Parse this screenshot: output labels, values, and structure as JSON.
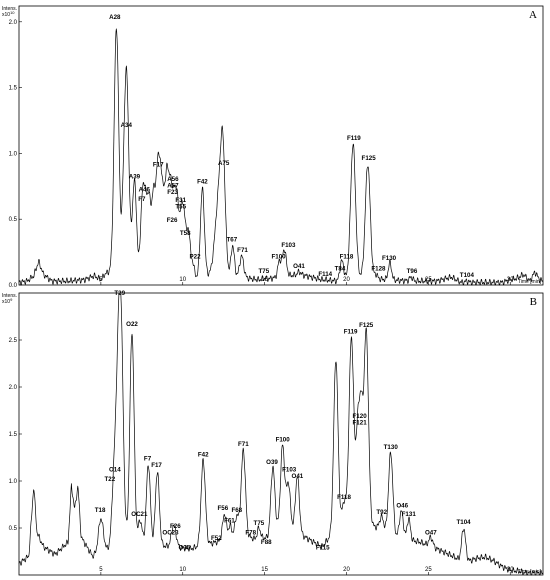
{
  "chart_data": [
    {
      "type": "line",
      "panel_label": "A",
      "y_unit_label": "Intens.",
      "y_scale_label": "x10",
      "y_scale_exp": "10",
      "x_unit_label": "Time [min]",
      "xlim": [
        0,
        32
      ],
      "ylim": [
        0,
        2.12
      ],
      "x_ticks": [
        {
          "value": 5,
          "label": "5"
        },
        {
          "value": 10,
          "label": "10"
        },
        {
          "value": 15,
          "label": "15"
        },
        {
          "value": 20,
          "label": "20"
        },
        {
          "value": 25,
          "label": "25"
        },
        {
          "value": 30,
          "label": "30"
        }
      ],
      "y_ticks": [
        {
          "value": 0.0,
          "label": "0.0"
        },
        {
          "value": 0.5,
          "label": "0.5"
        },
        {
          "value": 1.0,
          "label": "1.0"
        },
        {
          "value": 1.5,
          "label": "1.5"
        },
        {
          "value": 2.0,
          "label": "2.0"
        }
      ],
      "baseline": [
        [
          0.0,
          0.02
        ],
        [
          0.5,
          0.03
        ],
        [
          0.9,
          0.07
        ],
        [
          1.2,
          0.18
        ],
        [
          1.5,
          0.08
        ],
        [
          2.0,
          0.03
        ],
        [
          3.0,
          0.03
        ],
        [
          4.0,
          0.04
        ],
        [
          4.6,
          0.07
        ],
        [
          5.0,
          0.04
        ],
        [
          5.3,
          0.09
        ],
        [
          5.6,
          0.1
        ],
        [
          7.6,
          0.06
        ],
        [
          10.6,
          0.05
        ],
        [
          11.8,
          0.08
        ],
        [
          12.6,
          0.09
        ],
        [
          13.6,
          0.06
        ],
        [
          14.6,
          0.04
        ],
        [
          15.4,
          0.05
        ],
        [
          16.4,
          0.07
        ],
        [
          17.2,
          0.08
        ],
        [
          18.5,
          0.04
        ],
        [
          19.5,
          0.03
        ],
        [
          20.6,
          0.07
        ],
        [
          21.4,
          0.05
        ],
        [
          22.6,
          0.04
        ],
        [
          24.0,
          0.03
        ],
        [
          25.5,
          0.03
        ],
        [
          26.4,
          0.06
        ],
        [
          27.0,
          0.02
        ],
        [
          29.5,
          0.02
        ],
        [
          30.0,
          0.04
        ],
        [
          30.4,
          0.05
        ],
        [
          30.8,
          0.08
        ],
        [
          31.2,
          0.03
        ],
        [
          31.5,
          0.1
        ],
        [
          31.8,
          0.04
        ],
        [
          32.0,
          0.03
        ]
      ],
      "peaks": [
        {
          "x": 5.95,
          "y": 1.96,
          "w": 0.14,
          "label": "A28",
          "lx": 5.85,
          "ly": 2.02,
          "ha": "middle"
        },
        {
          "x": 6.45,
          "y": 0.79,
          "w": 0.14,
          "label": "",
          "lx": null,
          "ly": null,
          "ha": "middle"
        },
        {
          "x": 6.6,
          "y": 1.17,
          "w": 0.13,
          "label": "A34",
          "lx": 6.55,
          "ly": 1.2,
          "ha": "middle"
        },
        {
          "x": 7.05,
          "y": 0.79,
          "w": 0.13,
          "label": "A39",
          "lx": 7.05,
          "ly": 0.81,
          "ha": "middle"
        },
        {
          "x": 7.5,
          "y": 0.5,
          "w": 0.1,
          "label": "",
          "lx": null,
          "ly": null,
          "ha": "middle"
        },
        {
          "x": 7.7,
          "y": 0.68,
          "w": 0.12,
          "label": "A46",
          "lx": 7.65,
          "ly": 0.71,
          "ha": "middle"
        },
        {
          "x": 7.95,
          "y": 0.62,
          "w": 0.1,
          "label": "F7",
          "lx": 7.5,
          "ly": 0.64,
          "ha": "middle"
        },
        {
          "x": 8.2,
          "y": 0.67,
          "w": 0.1,
          "label": "",
          "lx": null,
          "ly": null,
          "ha": "middle"
        },
        {
          "x": 8.45,
          "y": 0.84,
          "w": 0.11,
          "label": "F17",
          "lx": 8.5,
          "ly": 0.9,
          "ha": "middle"
        },
        {
          "x": 8.65,
          "y": 0.72,
          "w": 0.1,
          "label": "",
          "lx": null,
          "ly": null,
          "ha": "middle"
        },
        {
          "x": 8.85,
          "y": 0.58,
          "w": 0.1,
          "label": "",
          "lx": null,
          "ly": null,
          "ha": "middle"
        },
        {
          "x": 9.05,
          "y": 0.76,
          "w": 0.1,
          "label": "A56",
          "lx": 9.05,
          "ly": 0.79,
          "ha": "start"
        },
        {
          "x": 9.25,
          "y": 0.66,
          "w": 0.1,
          "label": "A57",
          "lx": 9.05,
          "ly": 0.74,
          "ha": "start"
        },
        {
          "x": 9.45,
          "y": 0.59,
          "w": 0.1,
          "label": "F23",
          "lx": 9.05,
          "ly": 0.69,
          "ha": "start"
        },
        {
          "x": 9.65,
          "y": 0.64,
          "w": 0.1,
          "label": "F26",
          "lx": 9.35,
          "ly": 0.48,
          "ha": "middle"
        },
        {
          "x": 9.9,
          "y": 0.54,
          "w": 0.1,
          "label": "F31",
          "lx": 9.55,
          "ly": 0.63,
          "ha": "start"
        },
        {
          "x": 10.1,
          "y": 0.49,
          "w": 0.1,
          "label": "T55",
          "lx": 9.55,
          "ly": 0.58,
          "ha": "start"
        },
        {
          "x": 10.35,
          "y": 0.41,
          "w": 0.1,
          "label": "T58",
          "lx": 10.15,
          "ly": 0.38,
          "ha": "middle"
        },
        {
          "x": 10.6,
          "y": 0.17,
          "w": 0.1,
          "label": "P22",
          "lx": 10.75,
          "ly": 0.2,
          "ha": "middle"
        },
        {
          "x": 11.2,
          "y": 0.73,
          "w": 0.12,
          "label": "F42",
          "lx": 11.2,
          "ly": 0.77,
          "ha": "middle"
        },
        {
          "x": 12.2,
          "y": 0.65,
          "w": 0.22,
          "label": "",
          "lx": null,
          "ly": null,
          "ha": "middle"
        },
        {
          "x": 12.45,
          "y": 0.86,
          "w": 0.14,
          "label": "A75",
          "lx": 12.5,
          "ly": 0.91,
          "ha": "middle"
        },
        {
          "x": 13.05,
          "y": 0.3,
          "w": 0.1,
          "label": "T67",
          "lx": 13.0,
          "ly": 0.33,
          "ha": "middle"
        },
        {
          "x": 13.6,
          "y": 0.22,
          "w": 0.12,
          "label": "F71",
          "lx": 13.65,
          "ly": 0.25,
          "ha": "middle"
        },
        {
          "x": 14.95,
          "y": 0.05,
          "w": 0.1,
          "label": "T75",
          "lx": 14.95,
          "ly": 0.09,
          "ha": "middle"
        },
        {
          "x": 15.9,
          "y": 0.18,
          "w": 0.1,
          "label": "F100",
          "lx": 15.85,
          "ly": 0.2,
          "ha": "middle"
        },
        {
          "x": 16.2,
          "y": 0.27,
          "w": 0.12,
          "label": "F103",
          "lx": 16.45,
          "ly": 0.29,
          "ha": "middle"
        },
        {
          "x": 17.1,
          "y": 0.1,
          "w": 0.1,
          "label": "O41",
          "lx": 17.1,
          "ly": 0.13,
          "ha": "middle"
        },
        {
          "x": 18.7,
          "y": 0.04,
          "w": 0.1,
          "label": "F114",
          "lx": 18.7,
          "ly": 0.07,
          "ha": "middle"
        },
        {
          "x": 19.65,
          "y": 0.1,
          "w": 0.1,
          "label": "T84",
          "lx": 19.6,
          "ly": 0.11,
          "ha": "middle"
        },
        {
          "x": 19.75,
          "y": 0.14,
          "w": 0.1,
          "label": "F118",
          "lx": 20.0,
          "ly": 0.2,
          "ha": "middle"
        },
        {
          "x": 20.4,
          "y": 1.07,
          "w": 0.15,
          "label": "F119",
          "lx": 20.45,
          "ly": 1.1,
          "ha": "middle"
        },
        {
          "x": 21.3,
          "y": 0.92,
          "w": 0.15,
          "label": "F125",
          "lx": 21.35,
          "ly": 0.95,
          "ha": "middle"
        },
        {
          "x": 21.8,
          "y": 0.08,
          "w": 0.1,
          "label": "F128",
          "lx": 21.95,
          "ly": 0.11,
          "ha": "middle"
        },
        {
          "x": 22.65,
          "y": 0.17,
          "w": 0.1,
          "label": "F130",
          "lx": 22.6,
          "ly": 0.19,
          "ha": "middle"
        },
        {
          "x": 23.95,
          "y": 0.06,
          "w": 0.1,
          "label": "T96",
          "lx": 24.0,
          "ly": 0.09,
          "ha": "middle"
        },
        {
          "x": 27.35,
          "y": 0.03,
          "w": 0.1,
          "label": "T104",
          "lx": 27.35,
          "ly": 0.06,
          "ha": "middle"
        }
      ]
    },
    {
      "type": "line",
      "panel_label": "B",
      "y_unit_label": "Intens.",
      "y_scale_label": "x10",
      "y_scale_exp": "9",
      "x_unit_label": "Time [min]",
      "xlim": [
        0,
        32
      ],
      "ylim": [
        0,
        3.0
      ],
      "x_ticks": [
        {
          "value": 5,
          "label": "5"
        },
        {
          "value": 10,
          "label": "10"
        },
        {
          "value": 15,
          "label": "15"
        },
        {
          "value": 20,
          "label": "20"
        },
        {
          "value": 25,
          "label": "25"
        },
        {
          "value": 30,
          "label": "30"
        }
      ],
      "y_ticks": [
        {
          "value": 0.5,
          "label": "0.5"
        },
        {
          "value": 1.0,
          "label": "1.0"
        },
        {
          "value": 1.5,
          "label": "1.5"
        },
        {
          "value": 2.0,
          "label": "2.0"
        },
        {
          "value": 2.5,
          "label": "2.5"
        }
      ],
      "baseline": [
        [
          0.0,
          0.12
        ],
        [
          0.6,
          0.2
        ],
        [
          0.9,
          0.95
        ],
        [
          1.1,
          0.45
        ],
        [
          1.5,
          0.3
        ],
        [
          2.2,
          0.22
        ],
        [
          3.0,
          0.35
        ],
        [
          3.2,
          0.95
        ],
        [
          3.4,
          0.7
        ],
        [
          3.6,
          0.95
        ],
        [
          3.8,
          0.4
        ],
        [
          4.5,
          0.2
        ],
        [
          5.5,
          0.28
        ],
        [
          6.5,
          0.35
        ],
        [
          8.0,
          0.32
        ],
        [
          9.5,
          0.3
        ],
        [
          10.5,
          0.28
        ],
        [
          12.0,
          0.35
        ],
        [
          13.5,
          0.4
        ],
        [
          14.5,
          0.38
        ],
        [
          15.2,
          0.4
        ],
        [
          16.0,
          0.55
        ],
        [
          17.5,
          0.4
        ],
        [
          18.5,
          0.3
        ],
        [
          19.2,
          0.45
        ],
        [
          20.0,
          0.6
        ],
        [
          21.0,
          0.55
        ],
        [
          22.0,
          0.5
        ],
        [
          23.0,
          0.4
        ],
        [
          24.5,
          0.35
        ],
        [
          25.5,
          0.28
        ],
        [
          26.5,
          0.2
        ],
        [
          27.0,
          0.15
        ],
        [
          27.5,
          0.15
        ],
        [
          28.0,
          0.18
        ],
        [
          28.5,
          0.19
        ],
        [
          29.0,
          0.15
        ],
        [
          29.5,
          0.09
        ],
        [
          30.0,
          0.05
        ],
        [
          30.5,
          0.04
        ],
        [
          31.0,
          0.02
        ],
        [
          32.0,
          0.02
        ]
      ],
      "peaks": [
        {
          "x": 5.0,
          "y": 0.6,
          "w": 0.15,
          "label": "T18",
          "lx": 4.95,
          "ly": 0.67,
          "ha": "middle"
        },
        {
          "x": 5.8,
          "y": 1.0,
          "w": 0.13,
          "label": "T22",
          "lx": 5.55,
          "ly": 1.0,
          "ha": "middle"
        },
        {
          "x": 6.0,
          "y": 1.1,
          "w": 0.12,
          "label": "O14",
          "lx": 5.85,
          "ly": 1.1,
          "ha": "middle"
        },
        {
          "x": 6.2,
          "y": 2.9,
          "w": 0.15,
          "label": "T29",
          "lx": 6.15,
          "ly": 2.98,
          "ha": "middle"
        },
        {
          "x": 6.9,
          "y": 2.58,
          "w": 0.13,
          "label": "O22",
          "lx": 6.9,
          "ly": 2.65,
          "ha": "middle"
        },
        {
          "x": 7.4,
          "y": 0.58,
          "w": 0.12,
          "label": "OC21",
          "lx": 7.35,
          "ly": 0.63,
          "ha": "middle"
        },
        {
          "x": 7.9,
          "y": 1.18,
          "w": 0.12,
          "label": "F7",
          "lx": 7.85,
          "ly": 1.22,
          "ha": "middle"
        },
        {
          "x": 8.45,
          "y": 1.1,
          "w": 0.12,
          "label": "F17",
          "lx": 8.4,
          "ly": 1.15,
          "ha": "middle"
        },
        {
          "x": 9.5,
          "y": 0.48,
          "w": 0.12,
          "label": "F26",
          "lx": 9.55,
          "ly": 0.5,
          "ha": "middle"
        },
        {
          "x": 9.35,
          "y": 0.4,
          "w": 0.1,
          "label": "OC23",
          "lx": 9.25,
          "ly": 0.43,
          "ha": "middle"
        },
        {
          "x": 10.1,
          "y": 0.24,
          "w": 0.1,
          "label": "O35",
          "lx": 10.1,
          "ly": 0.27,
          "ha": "middle"
        },
        {
          "x": 11.25,
          "y": 1.22,
          "w": 0.13,
          "label": "F42",
          "lx": 11.25,
          "ly": 1.26,
          "ha": "middle"
        },
        {
          "x": 12.05,
          "y": 0.34,
          "w": 0.1,
          "label": "F52",
          "lx": 12.05,
          "ly": 0.37,
          "ha": "middle"
        },
        {
          "x": 12.55,
          "y": 0.65,
          "w": 0.12,
          "label": "F56",
          "lx": 12.45,
          "ly": 0.69,
          "ha": "middle"
        },
        {
          "x": 12.9,
          "y": 0.52,
          "w": 0.1,
          "label": "F61",
          "lx": 12.85,
          "ly": 0.56,
          "ha": "middle"
        },
        {
          "x": 13.3,
          "y": 0.63,
          "w": 0.12,
          "label": "F68",
          "lx": 13.3,
          "ly": 0.67,
          "ha": "middle"
        },
        {
          "x": 13.7,
          "y": 1.33,
          "w": 0.13,
          "label": "F71",
          "lx": 13.7,
          "ly": 1.37,
          "ha": "middle"
        },
        {
          "x": 14.15,
          "y": 0.4,
          "w": 0.1,
          "label": "F78",
          "lx": 14.15,
          "ly": 0.43,
          "ha": "middle"
        },
        {
          "x": 14.65,
          "y": 0.5,
          "w": 0.1,
          "label": "T75",
          "lx": 14.65,
          "ly": 0.53,
          "ha": "middle"
        },
        {
          "x": 15.1,
          "y": 0.3,
          "w": 0.1,
          "label": "F88",
          "lx": 15.1,
          "ly": 0.33,
          "ha": "middle"
        },
        {
          "x": 15.5,
          "y": 1.15,
          "w": 0.12,
          "label": "O39",
          "lx": 15.45,
          "ly": 1.18,
          "ha": "middle"
        },
        {
          "x": 16.1,
          "y": 1.38,
          "w": 0.12,
          "label": "F100",
          "lx": 16.1,
          "ly": 1.42,
          "ha": "middle"
        },
        {
          "x": 16.45,
          "y": 0.98,
          "w": 0.12,
          "label": "F103",
          "lx": 16.5,
          "ly": 1.1,
          "ha": "middle"
        },
        {
          "x": 17.0,
          "y": 1.05,
          "w": 0.12,
          "label": "O41",
          "lx": 17.0,
          "ly": 1.03,
          "ha": "middle"
        },
        {
          "x": 18.55,
          "y": 0.24,
          "w": 0.1,
          "label": "F115",
          "lx": 18.55,
          "ly": 0.27,
          "ha": "middle"
        },
        {
          "x": 19.35,
          "y": 2.3,
          "w": 0.13,
          "label": "",
          "lx": null,
          "ly": null,
          "ha": "middle"
        },
        {
          "x": 19.85,
          "y": 0.78,
          "w": 0.12,
          "label": "F118",
          "lx": 19.85,
          "ly": 0.81,
          "ha": "middle"
        },
        {
          "x": 20.3,
          "y": 2.53,
          "w": 0.14,
          "label": "F119",
          "lx": 20.25,
          "ly": 2.57,
          "ha": "middle"
        },
        {
          "x": 20.7,
          "y": 1.6,
          "w": 0.12,
          "label": "F120",
          "lx": 20.8,
          "ly": 1.67,
          "ha": "middle"
        },
        {
          "x": 20.9,
          "y": 1.5,
          "w": 0.1,
          "label": "F121",
          "lx": 20.8,
          "ly": 1.6,
          "ha": "middle"
        },
        {
          "x": 21.2,
          "y": 2.6,
          "w": 0.14,
          "label": "F125",
          "lx": 21.2,
          "ly": 2.64,
          "ha": "middle"
        },
        {
          "x": 22.15,
          "y": 0.62,
          "w": 0.12,
          "label": "T92",
          "lx": 22.15,
          "ly": 0.65,
          "ha": "middle"
        },
        {
          "x": 22.7,
          "y": 1.3,
          "w": 0.13,
          "label": "T130",
          "lx": 22.7,
          "ly": 1.34,
          "ha": "middle"
        },
        {
          "x": 23.35,
          "y": 0.68,
          "w": 0.12,
          "label": "O46",
          "lx": 23.4,
          "ly": 0.72,
          "ha": "middle"
        },
        {
          "x": 23.8,
          "y": 0.6,
          "w": 0.1,
          "label": "F131",
          "lx": 23.8,
          "ly": 0.63,
          "ha": "middle"
        },
        {
          "x": 25.15,
          "y": 0.4,
          "w": 0.12,
          "label": "O47",
          "lx": 25.15,
          "ly": 0.43,
          "ha": "middle"
        },
        {
          "x": 27.15,
          "y": 0.5,
          "w": 0.12,
          "label": "T104",
          "lx": 27.15,
          "ly": 0.54,
          "ha": "middle"
        }
      ]
    }
  ]
}
